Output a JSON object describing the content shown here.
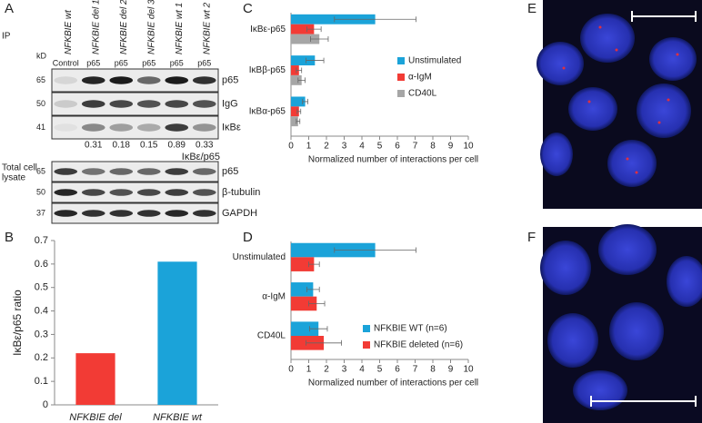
{
  "panel_labels": [
    "A",
    "B",
    "C",
    "D",
    "E",
    "F"
  ],
  "blot": {
    "ip_label": "IP",
    "kd_label": "kD",
    "columns": [
      "NFKBIE wt",
      "NFKBIE del 1",
      "NFKBIE del 2",
      "NFKBIE del 3",
      "NFKBIE wt 1",
      "NFKBIE wt 2"
    ],
    "lanes": [
      "Control",
      "p65",
      "p65",
      "p65",
      "p65",
      "p65"
    ],
    "ip_rows": [
      {
        "kd": 65,
        "label": "p65"
      },
      {
        "kd": 50,
        "label": "IgG"
      },
      {
        "kd": 41,
        "label": "IκBε"
      }
    ],
    "ratios": [
      0.31,
      0.18,
      0.15,
      0.89,
      0.33
    ],
    "ratio_label": "IκBε/p65",
    "lysate_label": [
      "Total cell",
      "lysate"
    ],
    "lysate_rows": [
      {
        "kd": 65,
        "label": "p65"
      },
      {
        "kd": 50,
        "label": "β-tubulin"
      },
      {
        "kd": 37,
        "label": "GAPDH"
      }
    ]
  },
  "chart_data": [
    {
      "type": "bar",
      "ylabel": "IκBε/p65 ratio",
      "categories": [
        "NFKBIE del",
        "NFKBIE wt"
      ],
      "values": [
        0.22,
        0.61
      ],
      "colors": [
        "#f23b35",
        "#1ba3d9"
      ],
      "ylim": [
        0,
        0.7
      ],
      "yticks": [
        0,
        0.1,
        0.2,
        0.3,
        0.4,
        0.5,
        0.6,
        0.7
      ]
    },
    {
      "type": "barh",
      "xlabel": "Normalized number of interactions per cell",
      "categories": [
        "IκBε-p65",
        "IκBβ-p65",
        "IκBα-p65"
      ],
      "series": [
        {
          "name": "Unstimulated",
          "color": "#1ba3d9",
          "values": [
            4.75,
            1.35,
            0.8
          ],
          "errors": [
            2.3,
            0.5,
            0.15
          ]
        },
        {
          "name": "α-IgM",
          "color": "#f23b35",
          "values": [
            1.3,
            0.45,
            0.45
          ],
          "errors": [
            0.4,
            0.15,
            0.1
          ]
        },
        {
          "name": "CD40L",
          "color": "#a6a6a6",
          "values": [
            1.6,
            0.6,
            0.4
          ],
          "errors": [
            0.5,
            0.2,
            0.1
          ]
        }
      ],
      "xlim": [
        0,
        10
      ],
      "xticks": [
        0,
        1,
        2,
        3,
        4,
        5,
        6,
        7,
        8,
        9,
        10
      ],
      "legend": "center right"
    },
    {
      "type": "barh",
      "xlabel": "Normalized number of interactions per cell",
      "categories": [
        "Unstimulated",
        "α-IgM",
        "CD40L"
      ],
      "series": [
        {
          "name": "NFKBIE WT (n=6)",
          "color": "#1ba3d9",
          "values": [
            4.75,
            1.25,
            1.55
          ],
          "errors": [
            2.3,
            0.35,
            0.5
          ]
        },
        {
          "name": "NFKBIE deleted (n=6)",
          "color": "#f23b35",
          "values": [
            1.3,
            1.45,
            1.85
          ],
          "errors": [
            0.3,
            0.45,
            1.0
          ]
        }
      ],
      "xlim": [
        0,
        10
      ],
      "xticks": [
        0,
        1,
        2,
        3,
        4,
        5,
        6,
        7,
        8,
        9,
        10
      ],
      "legend": "lower right"
    }
  ]
}
